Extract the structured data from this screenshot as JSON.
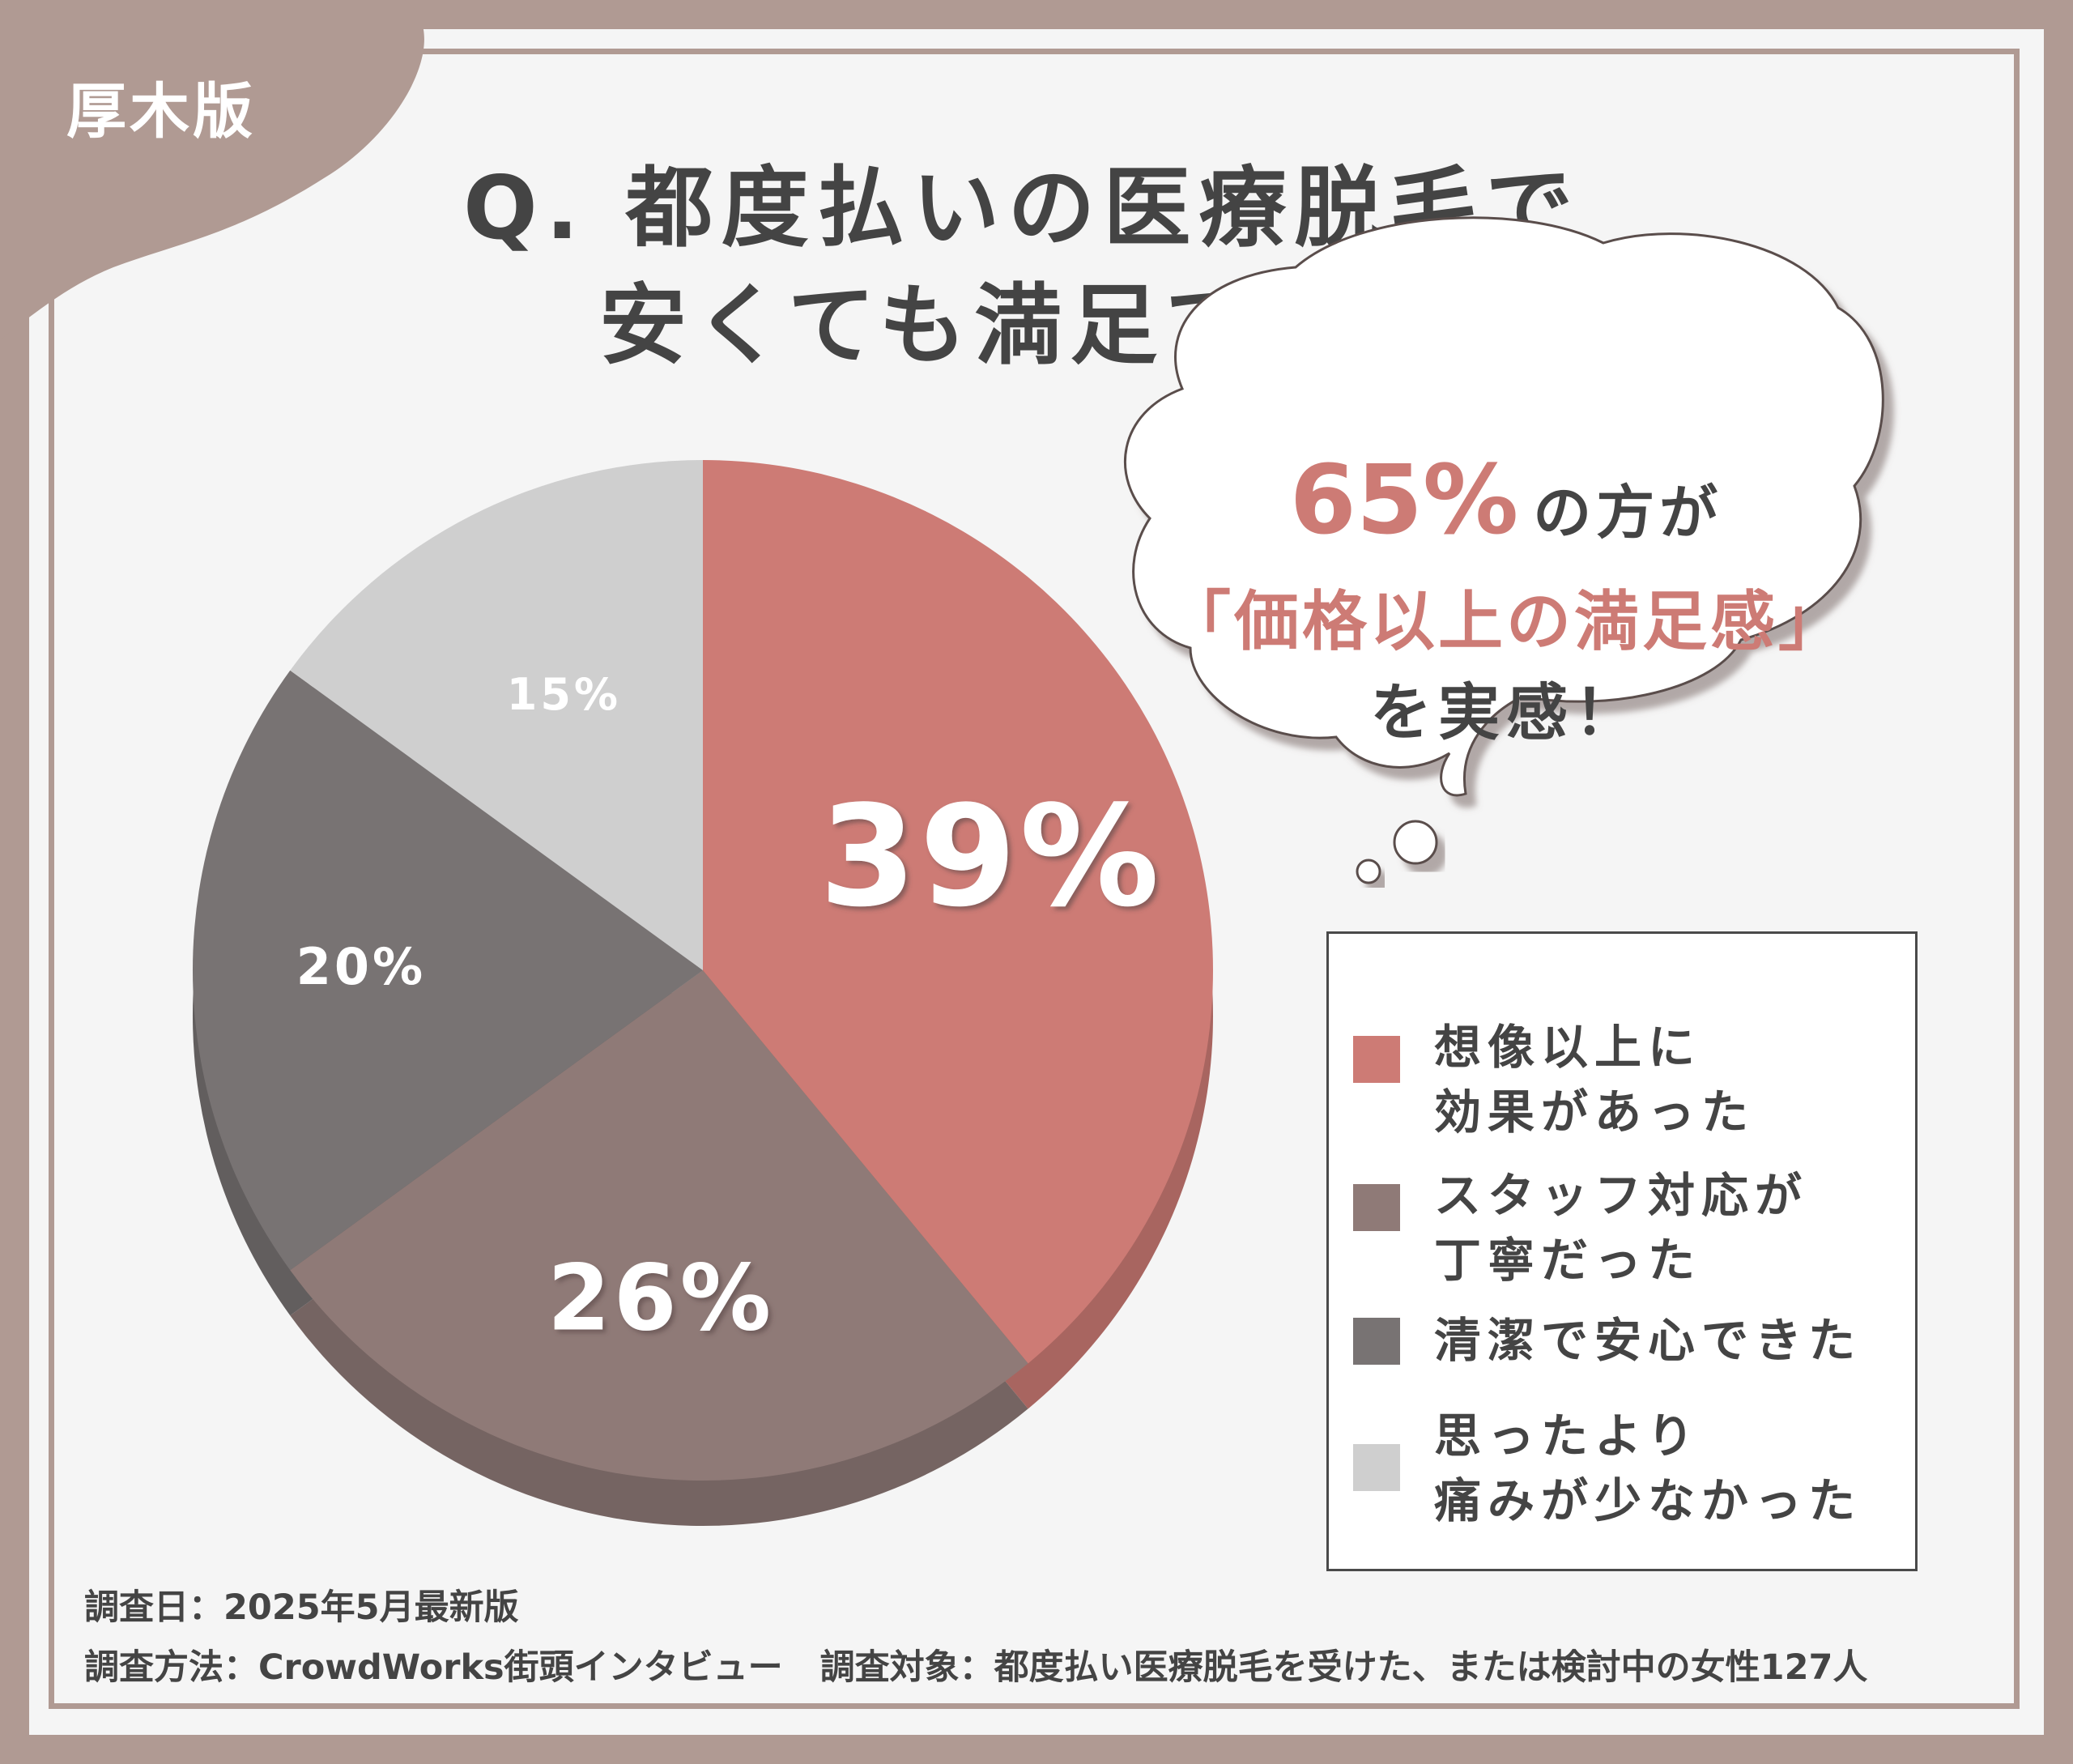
{
  "badge": "厚木版",
  "title": {
    "line1": "Q. 都度払いの医療脱毛で",
    "line2": "安くても満足できた理由は？"
  },
  "bubble": {
    "percent": "65%",
    "text1": "の方が",
    "text2": "「価格以上の満足感」",
    "text3": "を実感！"
  },
  "legend": {
    "items": [
      {
        "label": "想像以上に\n効果があった",
        "color": "#cd7b75"
      },
      {
        "label": "スタッフ対応が\n丁寧だった",
        "color": "#8f7a77"
      },
      {
        "label": "清潔で安心できた",
        "color": "#787373"
      },
      {
        "label": "思ったより\n痛みが少なかった",
        "color": "#cfcfcf"
      }
    ]
  },
  "chart_data": {
    "type": "pie",
    "categories": [
      "想像以上に効果があった",
      "スタッフ対応が丁寧だった",
      "清潔で安心できた",
      "思ったより痛みが少なかった"
    ],
    "values": [
      39,
      26,
      20,
      15
    ],
    "data_labels": [
      "39%",
      "26%",
      "20%",
      "15%"
    ],
    "colors": [
      "#cd7b75",
      "#8f7a77",
      "#787373",
      "#cfcfcf"
    ],
    "start": "12 o'clock",
    "direction": "clockwise",
    "legend_position": "right"
  },
  "footer": {
    "date": "調査日：2025年5月最新版",
    "method": "調査方法：CrowdWorks街頭インタビュー",
    "target": "調査対象：都度払い医療脱毛を受けた、または検討中の女性127人"
  }
}
